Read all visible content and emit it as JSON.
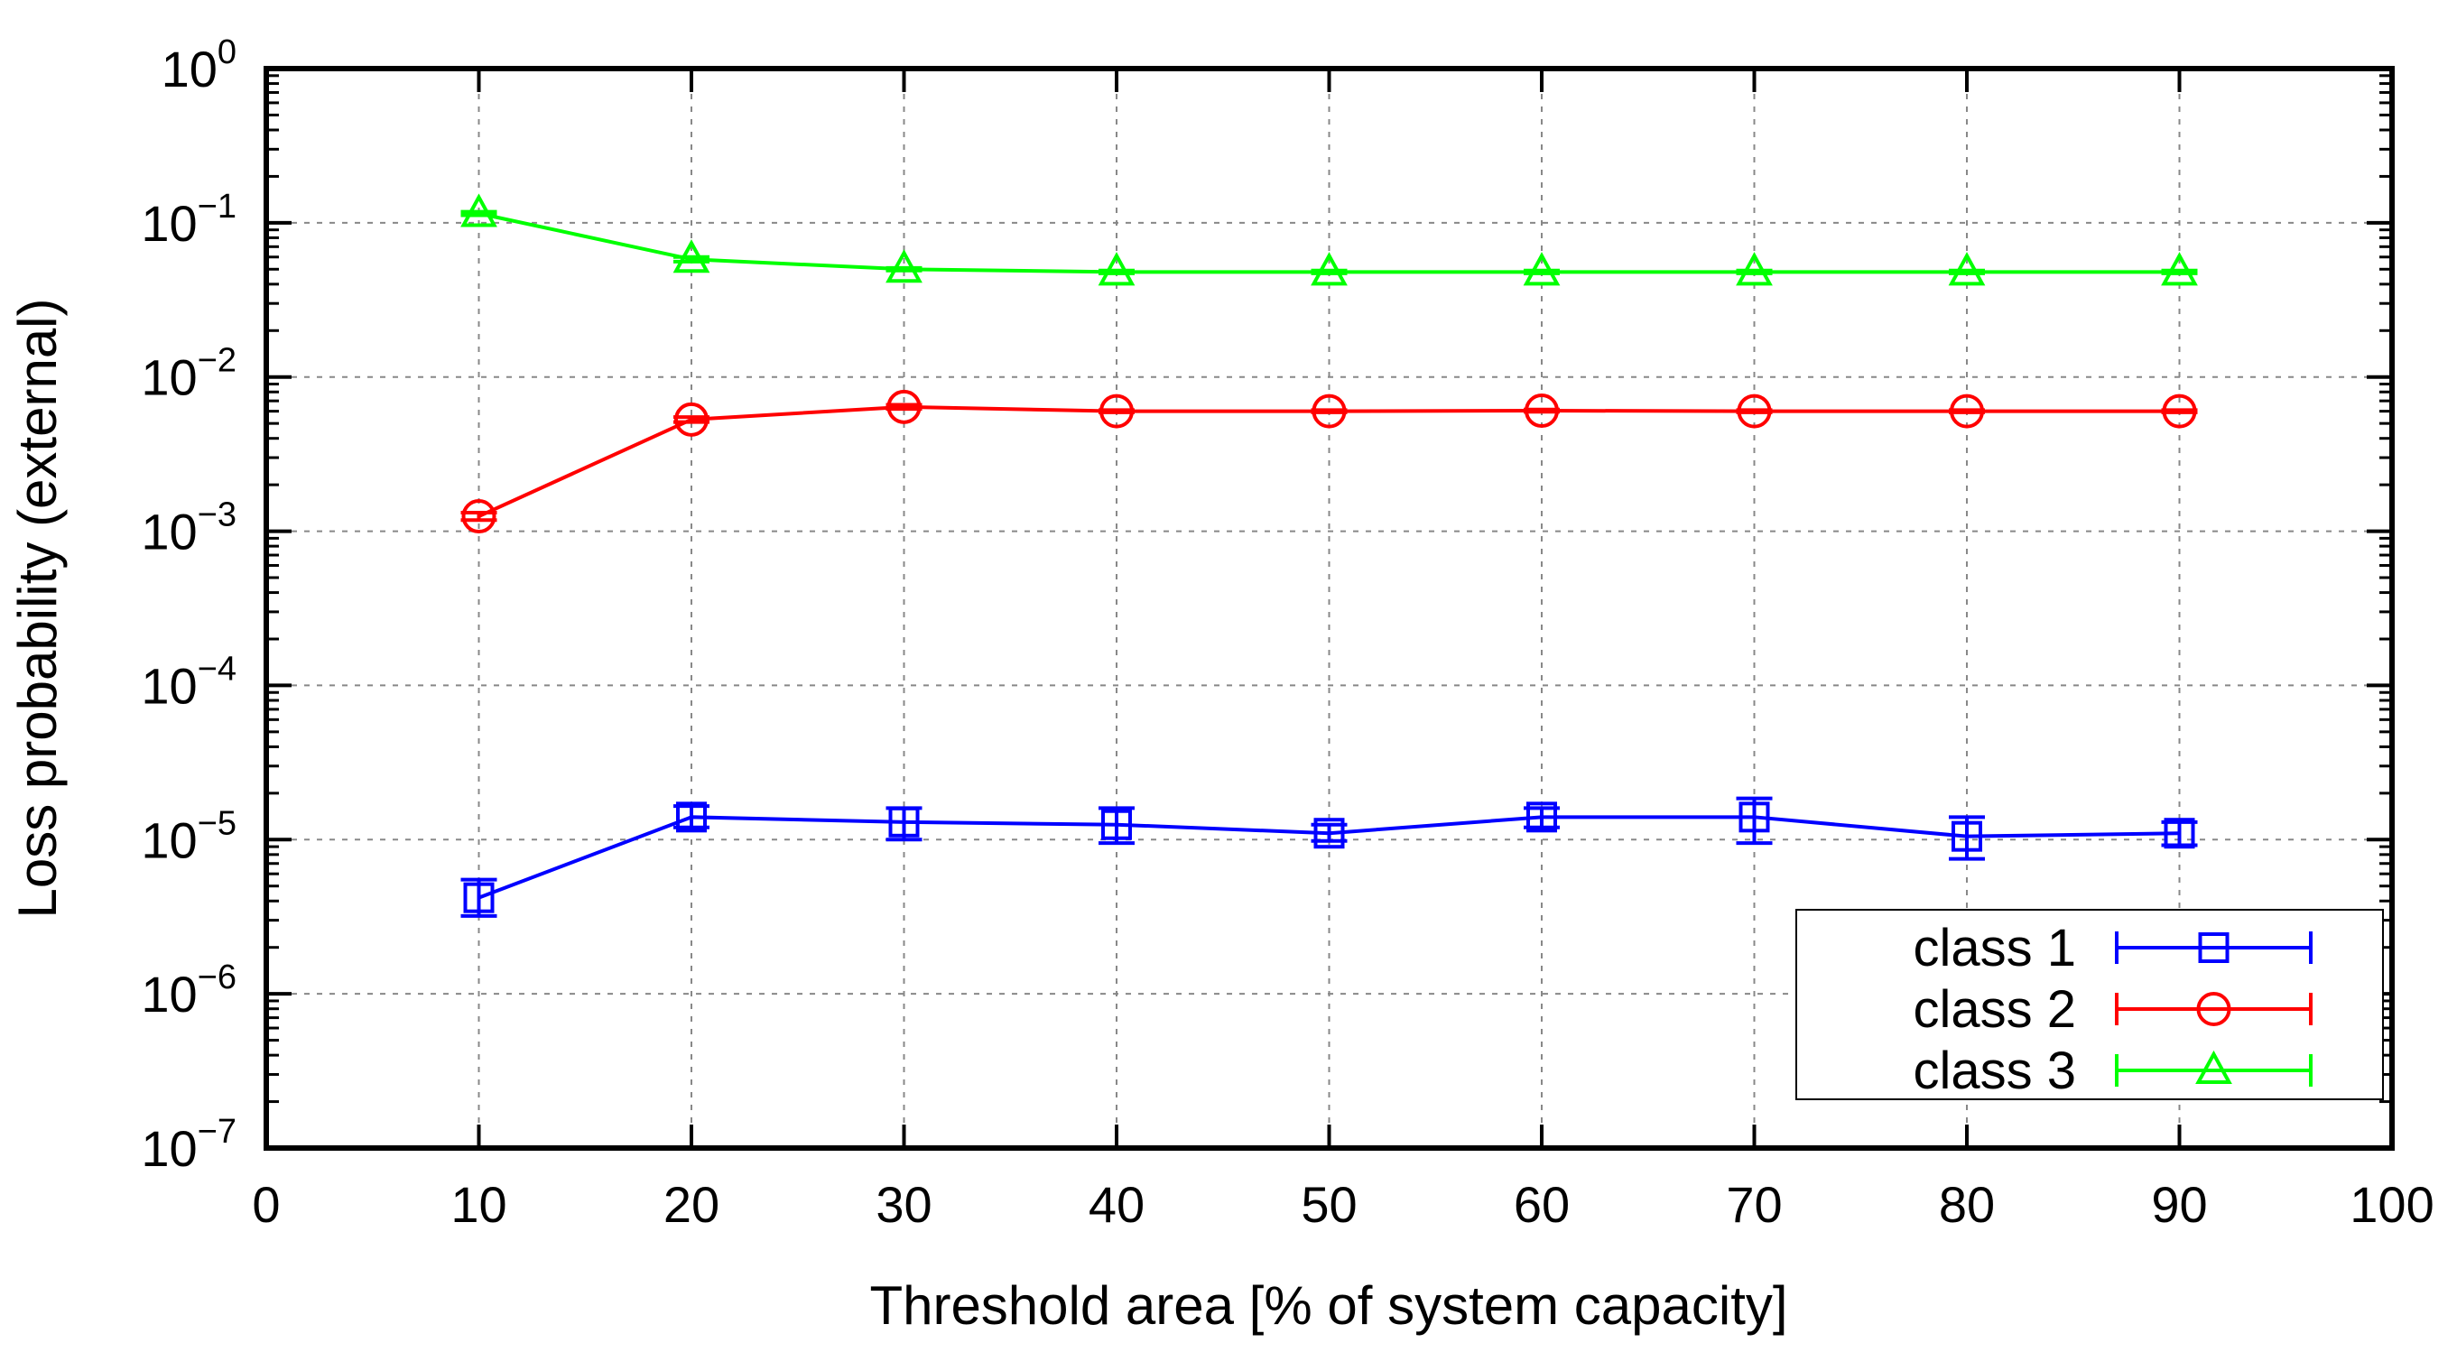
{
  "chart_data": {
    "type": "line",
    "title": "",
    "xlabel": "Threshold area [% of system capacity]",
    "ylabel": "Loss probability (external)",
    "x_scale": "linear",
    "y_scale": "log",
    "xlim": [
      0,
      100
    ],
    "ylim": [
      1e-07,
      1
    ],
    "x_ticks": [
      0,
      10,
      20,
      30,
      40,
      50,
      60,
      70,
      80,
      90,
      100
    ],
    "x_tick_labels": [
      "0",
      "10",
      "20",
      "30",
      "40",
      "50",
      "60",
      "70",
      "80",
      "90",
      "100"
    ],
    "y_ticks": [
      {
        "value": 1e-07,
        "base": "10",
        "exp": "−7"
      },
      {
        "value": 1e-06,
        "base": "10",
        "exp": "−6"
      },
      {
        "value": 1e-05,
        "base": "10",
        "exp": "−5"
      },
      {
        "value": 0.0001,
        "base": "10",
        "exp": "−4"
      },
      {
        "value": 0.001,
        "base": "10",
        "exp": "−3"
      },
      {
        "value": 0.01,
        "base": "10",
        "exp": "−2"
      },
      {
        "value": 0.1,
        "base": "10",
        "exp": "−1"
      },
      {
        "value": 1,
        "base": "10",
        "exp": "0"
      }
    ],
    "grid": true,
    "legend_position": "bottom-right",
    "x": [
      10,
      20,
      30,
      40,
      50,
      60,
      70,
      80,
      90
    ],
    "series": [
      {
        "name": "class 1",
        "color": "#0000ff",
        "marker": "square",
        "values": [
          4.2e-06,
          1.4e-05,
          1.3e-05,
          1.25e-05,
          1.1e-05,
          1.4e-05,
          1.4e-05,
          1.05e-05,
          1.1e-05
        ],
        "err_low": [
          3.2e-06,
          1.2e-05,
          1e-05,
          9.5e-06,
          9.8e-06,
          1.2e-05,
          9.5e-06,
          7.5e-06,
          9.2e-06
        ],
        "err_high": [
          5.5e-06,
          1.65e-05,
          1.6e-05,
          1.6e-05,
          1.25e-05,
          1.6e-05,
          1.85e-05,
          1.4e-05,
          1.3e-05
        ]
      },
      {
        "name": "class 2",
        "color": "#ff0000",
        "marker": "circle",
        "values": [
          0.00125,
          0.0053,
          0.0064,
          0.006,
          0.006,
          0.00605,
          0.006,
          0.006,
          0.006
        ],
        "err_low": [
          0.00118,
          0.0051,
          0.0062,
          0.0059,
          0.0059,
          0.00595,
          0.0059,
          0.0059,
          0.0059
        ],
        "err_high": [
          0.00132,
          0.0055,
          0.0066,
          0.0061,
          0.0061,
          0.00615,
          0.0061,
          0.0061,
          0.0061
        ]
      },
      {
        "name": "class 3",
        "color": "#00ff00",
        "marker": "triangle",
        "values": [
          0.115,
          0.058,
          0.05,
          0.048,
          0.048,
          0.048,
          0.048,
          0.048,
          0.048
        ],
        "err_low": [
          0.112,
          0.056,
          0.049,
          0.047,
          0.047,
          0.047,
          0.047,
          0.047,
          0.047
        ],
        "err_high": [
          0.118,
          0.06,
          0.051,
          0.049,
          0.049,
          0.049,
          0.049,
          0.049,
          0.049
        ]
      }
    ]
  }
}
